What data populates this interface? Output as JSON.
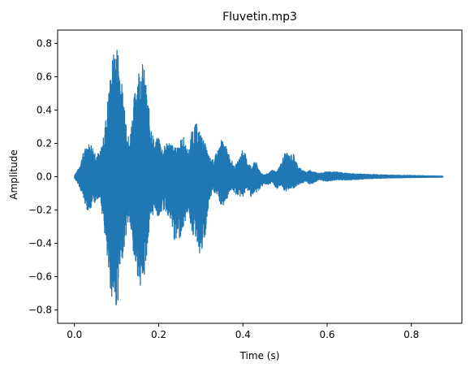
{
  "chart_data": {
    "type": "line",
    "title": "Fluvetin.mp3",
    "xlabel": "Time (s)",
    "ylabel": "Amplitude",
    "xlim": [
      -0.04,
      0.92
    ],
    "ylim": [
      -0.88,
      0.88
    ],
    "xticks": [
      0.0,
      0.2,
      0.4,
      0.6,
      0.8
    ],
    "xtick_labels": [
      "0.0",
      "0.2",
      "0.4",
      "0.6",
      "0.8"
    ],
    "yticks": [
      -0.8,
      -0.6,
      -0.4,
      -0.2,
      0.0,
      0.2,
      0.4,
      0.6,
      0.8
    ],
    "ytick_labels": [
      "−0.8",
      "−0.6",
      "−0.4",
      "−0.2",
      "0.0",
      "0.2",
      "0.4",
      "0.6",
      "0.8"
    ],
    "grid": false,
    "series": [
      {
        "color": "#1f77b4",
        "envelope": {
          "t": [
            0.0,
            0.01,
            0.02,
            0.03,
            0.04,
            0.05,
            0.06,
            0.07,
            0.08,
            0.09,
            0.1,
            0.105,
            0.11,
            0.12,
            0.13,
            0.14,
            0.15,
            0.16,
            0.165,
            0.17,
            0.18,
            0.19,
            0.2,
            0.21,
            0.22,
            0.23,
            0.24,
            0.25,
            0.26,
            0.27,
            0.28,
            0.29,
            0.3,
            0.31,
            0.32,
            0.33,
            0.34,
            0.35,
            0.36,
            0.37,
            0.38,
            0.39,
            0.4,
            0.41,
            0.42,
            0.43,
            0.44,
            0.45,
            0.46,
            0.47,
            0.48,
            0.49,
            0.5,
            0.51,
            0.52,
            0.53,
            0.54,
            0.55,
            0.56,
            0.58,
            0.6,
            0.62,
            0.65,
            0.7,
            0.75,
            0.8,
            0.85,
            0.875
          ],
          "upper": [
            0.01,
            0.05,
            0.14,
            0.2,
            0.2,
            0.15,
            0.14,
            0.25,
            0.5,
            0.72,
            0.8,
            0.79,
            0.6,
            0.45,
            0.2,
            0.45,
            0.65,
            0.7,
            0.66,
            0.55,
            0.35,
            0.2,
            0.25,
            0.16,
            0.22,
            0.2,
            0.17,
            0.22,
            0.24,
            0.14,
            0.3,
            0.32,
            0.26,
            0.2,
            0.12,
            0.1,
            0.16,
            0.23,
            0.18,
            0.12,
            0.06,
            0.1,
            0.18,
            0.1,
            0.06,
            0.1,
            0.03,
            0.01,
            0.02,
            0.04,
            0.03,
            0.08,
            0.15,
            0.13,
            0.14,
            0.07,
            0.04,
            0.03,
            0.04,
            0.02,
            0.03,
            0.03,
            0.02,
            0.015,
            0.01,
            0.008,
            0.005,
            0.004
          ],
          "lower": [
            -0.01,
            -0.05,
            -0.12,
            -0.2,
            -0.2,
            -0.15,
            -0.12,
            -0.3,
            -0.6,
            -0.75,
            -0.8,
            -0.72,
            -0.55,
            -0.4,
            -0.25,
            -0.5,
            -0.6,
            -0.68,
            -0.64,
            -0.5,
            -0.3,
            -0.19,
            -0.25,
            -0.2,
            -0.22,
            -0.3,
            -0.42,
            -0.37,
            -0.3,
            -0.2,
            -0.35,
            -0.38,
            -0.5,
            -0.38,
            -0.15,
            -0.09,
            -0.12,
            -0.19,
            -0.15,
            -0.08,
            -0.1,
            -0.12,
            -0.12,
            -0.08,
            -0.12,
            -0.1,
            -0.08,
            -0.04,
            -0.06,
            -0.03,
            -0.08,
            -0.05,
            -0.1,
            -0.07,
            -0.07,
            -0.05,
            -0.04,
            -0.03,
            -0.05,
            -0.02,
            -0.03,
            -0.02,
            -0.02,
            -0.012,
            -0.008,
            -0.006,
            -0.004,
            -0.003
          ]
        }
      }
    ]
  }
}
